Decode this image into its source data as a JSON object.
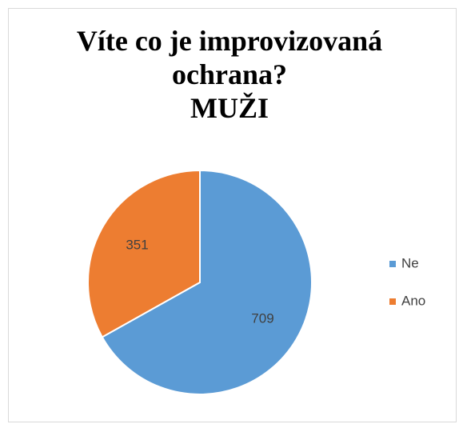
{
  "chart_data": {
    "type": "pie",
    "title": [
      "Víte co je improvizovaná ochrana?",
      "MUŽI"
    ],
    "categories": [
      "Ne",
      "Ano"
    ],
    "values": [
      709,
      351
    ],
    "colors": [
      "#5b9bd5",
      "#ed7d31"
    ],
    "legend": "right"
  }
}
